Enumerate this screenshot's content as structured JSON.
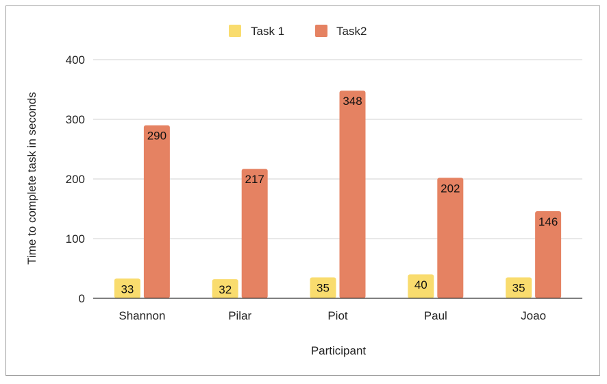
{
  "chart_data": {
    "type": "bar",
    "title": "",
    "xlabel": "Participant",
    "ylabel": "Time to complete task in seconds",
    "categories": [
      "Shannon",
      "Pilar",
      "Piot",
      "Paul",
      "Joao"
    ],
    "series": [
      {
        "name": "Task 1",
        "color": "#f9dc6e",
        "values": [
          33,
          32,
          35,
          40,
          35
        ]
      },
      {
        "name": "Task2",
        "color": "#e58262",
        "values": [
          290,
          217,
          348,
          202,
          146
        ]
      }
    ],
    "ylim": [
      0,
      400
    ],
    "yticks": [
      0,
      100,
      200,
      300,
      400
    ],
    "grid": true,
    "legend_position": "top-center",
    "data_labels": true
  }
}
